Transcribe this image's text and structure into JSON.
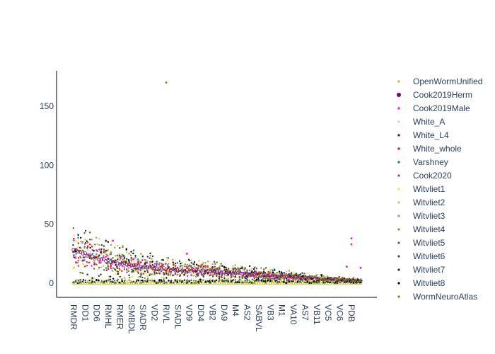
{
  "chart_data": {
    "type": "scatter",
    "title": "",
    "xlabel": "",
    "ylabel": "",
    "ylim": [
      -12,
      180
    ],
    "yticks": [
      0,
      50,
      100,
      150
    ],
    "grid": false,
    "legend_position": "right",
    "x_tick_labels": [
      "RMDR",
      "DD1",
      "DD6",
      "RMHL",
      "RMER",
      "SMBDL",
      "SIADR",
      "VD2",
      "RIVL",
      "SIADL",
      "VD9",
      "DD4",
      "VB2",
      "DA9",
      "M4",
      "AS2",
      "SABVL",
      "VB3",
      "M1",
      "VA10",
      "AS7",
      "VB11",
      "VC5",
      "VC6",
      "PDB"
    ],
    "category_count": 125,
    "series": [
      {
        "name": "OpenWormUnified",
        "color": "#bcbd22",
        "marker": "dot"
      },
      {
        "name": "Cook2019Herm",
        "color": "#800080",
        "marker": "dot-large"
      },
      {
        "name": "Cook2019Male",
        "color": "#ff00ff",
        "marker": "dot"
      },
      {
        "name": "White_A",
        "color": "#ffb6c1",
        "marker": "dot"
      },
      {
        "name": "White_L4",
        "color": "#8b0000",
        "marker": "dot"
      },
      {
        "name": "White_whole",
        "color": "#ff0000",
        "marker": "dot"
      },
      {
        "name": "Varshney",
        "color": "#008080",
        "marker": "dot"
      },
      {
        "name": "Cook2020",
        "color": "#9932cc",
        "marker": "dot"
      },
      {
        "name": "Witvliet1",
        "color": "#e8e84a",
        "marker": "dot"
      },
      {
        "name": "Witvliet2",
        "color": "#c8c850",
        "marker": "dot"
      },
      {
        "name": "Witvliet3",
        "color": "#a0a048",
        "marker": "dot"
      },
      {
        "name": "Witvliet4",
        "color": "#8a8a30",
        "marker": "dot"
      },
      {
        "name": "Witvliet5",
        "color": "#556b2f",
        "marker": "dot"
      },
      {
        "name": "Witvliet6",
        "color": "#2f4f4f",
        "marker": "dot"
      },
      {
        "name": "Witvliet7",
        "color": "#1c2e2e",
        "marker": "dot"
      },
      {
        "name": "Witvliet8",
        "color": "#000000",
        "marker": "dot"
      },
      {
        "name": "WormNeuroAtlas",
        "color": "#808000",
        "marker": "dot"
      }
    ],
    "mean_profile": {
      "description_points": [
        [
          0,
          28
        ],
        [
          10,
          21
        ],
        [
          20,
          17
        ],
        [
          30,
          14
        ],
        [
          45,
          11
        ],
        [
          60,
          10
        ],
        [
          75,
          8
        ],
        [
          90,
          6
        ],
        [
          105,
          4
        ],
        [
          115,
          3
        ],
        [
          124,
          2
        ]
      ]
    },
    "outliers": [
      {
        "series": "WormNeuroAtlas",
        "x_index": 40,
        "y": 170
      },
      {
        "series": "Cook2019Male",
        "x_index": 120,
        "y": 38
      },
      {
        "series": "Cook2019Male",
        "x_index": 120,
        "y": 33
      },
      {
        "series": "Cook2019Male",
        "x_index": 17,
        "y": 36
      },
      {
        "series": "Cook2019Male",
        "x_index": 49,
        "y": 25
      },
      {
        "series": "Cook2019Male",
        "x_index": 118,
        "y": 14
      },
      {
        "series": "Cook2019Male",
        "x_index": 124,
        "y": 13
      }
    ]
  }
}
